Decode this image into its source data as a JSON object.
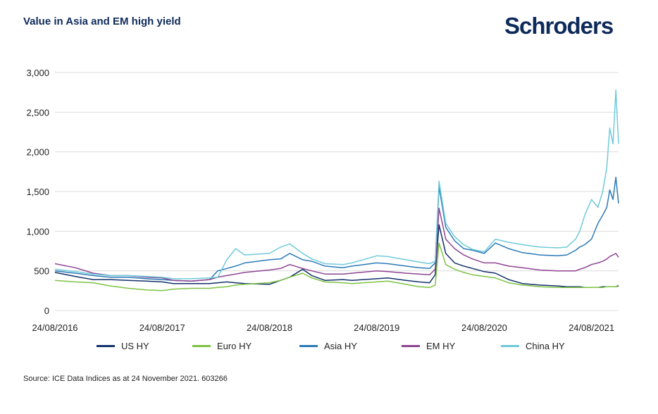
{
  "header": {
    "title": "Value in Asia and EM high yield",
    "logo_text": "Schroders"
  },
  "footer": {
    "source": "Source: ICE Data Indices as at 24 November 2021. 603266"
  },
  "chart_data": {
    "type": "line",
    "title": "Value in Asia and EM high yield",
    "xlabel": "",
    "ylabel": "",
    "x_tick_labels": [
      "24/08/2016",
      "24/08/2017",
      "24/08/2018",
      "24/08/2019",
      "24/08/2020",
      "24/08/2021"
    ],
    "y_tick_labels": [
      "0",
      "500",
      "1,000",
      "1,500",
      "2,000",
      "2,500",
      "3,000"
    ],
    "y_ticks": [
      0,
      500,
      1000,
      1500,
      2000,
      2500,
      3000
    ],
    "ylim": [
      0,
      3000
    ],
    "xlim": [
      "2016-08-24",
      "2021-11-24"
    ],
    "grid": "horizontal",
    "legend_position": "bottom",
    "x": [
      "2016-08-24",
      "2016-11-01",
      "2017-01-01",
      "2017-03-01",
      "2017-05-01",
      "2017-07-01",
      "2017-08-24",
      "2017-10-01",
      "2017-12-01",
      "2018-02-01",
      "2018-03-01",
      "2018-04-01",
      "2018-05-01",
      "2018-06-01",
      "2018-08-24",
      "2018-10-01",
      "2018-11-01",
      "2018-12-15",
      "2019-01-15",
      "2019-03-01",
      "2019-05-01",
      "2019-06-01",
      "2019-08-24",
      "2019-10-01",
      "2019-12-01",
      "2020-01-15",
      "2020-02-20",
      "2020-03-10",
      "2020-03-23",
      "2020-04-15",
      "2020-05-15",
      "2020-06-15",
      "2020-07-15",
      "2020-08-24",
      "2020-10-01",
      "2020-11-15",
      "2021-01-01",
      "2021-03-01",
      "2021-05-01",
      "2021-06-01",
      "2021-07-01",
      "2021-07-15",
      "2021-08-01",
      "2021-08-24",
      "2021-09-15",
      "2021-10-01",
      "2021-10-15",
      "2021-10-25",
      "2021-11-05",
      "2021-11-15",
      "2021-11-24"
    ],
    "series": [
      {
        "name": "US HY",
        "color": "#13316b",
        "values": [
          480,
          430,
          390,
          390,
          380,
          370,
          360,
          340,
          340,
          340,
          350,
          360,
          350,
          340,
          330,
          380,
          420,
          520,
          440,
          380,
          390,
          380,
          400,
          410,
          380,
          360,
          350,
          450,
          1080,
          720,
          600,
          560,
          530,
          490,
          470,
          390,
          340,
          320,
          310,
          300,
          300,
          300,
          290,
          290,
          290,
          300,
          300,
          300,
          300,
          300,
          310
        ]
      },
      {
        "name": "Euro HY",
        "color": "#7cc242",
        "values": [
          380,
          360,
          350,
          310,
          280,
          260,
          250,
          270,
          280,
          280,
          290,
          300,
          320,
          330,
          350,
          380,
          420,
          470,
          410,
          360,
          350,
          340,
          360,
          370,
          330,
          300,
          290,
          320,
          850,
          580,
          520,
          480,
          450,
          430,
          410,
          350,
          320,
          300,
          290,
          290,
          290,
          290,
          290,
          290,
          290,
          290,
          300,
          300,
          300,
          300,
          320
        ]
      },
      {
        "name": "Asia HY",
        "color": "#2b7ab8",
        "values": [
          500,
          470,
          440,
          420,
          420,
          400,
          390,
          380,
          370,
          390,
          500,
          530,
          560,
          600,
          640,
          650,
          720,
          640,
          620,
          560,
          540,
          560,
          600,
          590,
          560,
          540,
          530,
          600,
          1560,
          1050,
          880,
          780,
          760,
          720,
          850,
          780,
          730,
          700,
          690,
          700,
          760,
          800,
          830,
          900,
          1100,
          1200,
          1300,
          1520,
          1400,
          1680,
          1350
        ]
      },
      {
        "name": "EM HY",
        "color": "#8e4493",
        "values": [
          590,
          540,
          470,
          440,
          440,
          420,
          410,
          380,
          370,
          390,
          420,
          440,
          460,
          480,
          510,
          530,
          580,
          530,
          500,
          460,
          460,
          470,
          500,
          490,
          470,
          460,
          450,
          520,
          1290,
          900,
          780,
          700,
          650,
          600,
          600,
          560,
          540,
          510,
          500,
          500,
          500,
          520,
          540,
          580,
          600,
          620,
          650,
          680,
          700,
          720,
          670
        ]
      },
      {
        "name": "China HY",
        "color": "#6fcad9",
        "values": [
          520,
          490,
          460,
          440,
          440,
          430,
          420,
          400,
          400,
          410,
          420,
          640,
          780,
          700,
          720,
          800,
          840,
          720,
          650,
          590,
          580,
          600,
          690,
          680,
          640,
          610,
          590,
          620,
          1630,
          1100,
          930,
          830,
          770,
          740,
          900,
          860,
          830,
          800,
          790,
          800,
          900,
          1000,
          1200,
          1400,
          1300,
          1500,
          1800,
          2300,
          2100,
          2780,
          2100
        ]
      }
    ]
  }
}
